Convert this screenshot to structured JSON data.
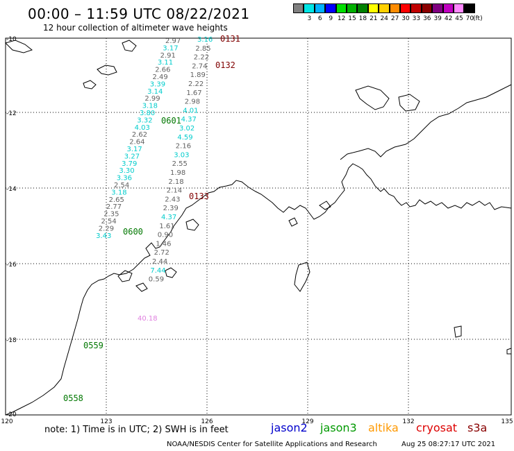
{
  "header": {
    "title": "00:00 – 11:59 UTC 08/22/2021",
    "subtitle": "12 hour collection of altimeter wave heights"
  },
  "legend": {
    "unit": "(ft)",
    "items": [
      {
        "label": "",
        "color": "#808080"
      },
      {
        "label": "3",
        "color": "#00e5e5"
      },
      {
        "label": "6",
        "color": "#00b0ff"
      },
      {
        "label": "9",
        "color": "#0000ff"
      },
      {
        "label": "12",
        "color": "#00e000"
      },
      {
        "label": "15",
        "color": "#00b000"
      },
      {
        "label": "18",
        "color": "#008000"
      },
      {
        "label": "21",
        "color": "#ffff00"
      },
      {
        "label": "24",
        "color": "#ffd000"
      },
      {
        "label": "27",
        "color": "#ff8c00"
      },
      {
        "label": "30",
        "color": "#ff0000"
      },
      {
        "label": "33",
        "color": "#c00000"
      },
      {
        "label": "36",
        "color": "#8b0000"
      },
      {
        "label": "39",
        "color": "#800080"
      },
      {
        "label": "42",
        "color": "#c000c0"
      },
      {
        "label": "45",
        "color": "#ff88ff"
      },
      {
        "label": "70",
        "color": "#000000"
      }
    ]
  },
  "axes": {
    "lat_labels": [
      "-10",
      "-12",
      "-14",
      "-16",
      "-18",
      "-20"
    ],
    "lon_labels": [
      "120",
      "123",
      "126",
      "129",
      "132",
      "135"
    ]
  },
  "tracks": {
    "colors": {
      "gray": "#606060",
      "cyan": "#00cccc",
      "green": "#007700",
      "darkred": "#800000",
      "pink": "#e080e0"
    },
    "times": {
      "t0131": "0131",
      "t0132": "0132",
      "t0601": "0601",
      "t0133": "0133",
      "t0600": "0600",
      "t0559": "0559",
      "t0558": "0558"
    },
    "left_track": [
      "2.97",
      "3.17",
      "2.91",
      "3.11",
      "2.66",
      "2.49",
      "3.39",
      "3.14",
      "2.99",
      "3.18",
      "3.80",
      "3.32",
      "4.03",
      "2.62",
      "2.64",
      "3.17",
      "3.27",
      "3.79",
      "3.30",
      "3.36",
      "2.54",
      "3.18",
      "2.65",
      "2.77",
      "2.35",
      "2.54",
      "2.29",
      "3.43"
    ],
    "right_track": [
      "3.16",
      "2.85",
      "2.22",
      "2.74",
      "1.89",
      "2.22",
      "1.67",
      "2.98",
      "4.01",
      "4.37",
      "3.02",
      "4.59",
      "2.16",
      "3.03",
      "2.55",
      "1.98",
      "2.18",
      "2.14",
      "2.43",
      "2.39",
      "4.37",
      "1.61",
      "0.90",
      "1.46",
      "2.72",
      "2.44",
      "7.44",
      "0.59"
    ],
    "pink_value": "40.18"
  },
  "footer": {
    "note": "note:  1) Time is in UTC;  2) SWH is in feet",
    "satellites": [
      {
        "name": "jason2",
        "color": "#0000cc"
      },
      {
        "name": "jason3",
        "color": "#009900"
      },
      {
        "name": "altika",
        "color": "#ff9900"
      },
      {
        "name": "cryosat",
        "color": "#dd0000"
      },
      {
        "name": "s3a",
        "color": "#880000"
      }
    ],
    "credit": "NOAA/NESDIS Center for Satellite Applications and Research",
    "timestamp": "Aug 25 08:27:17 UTC 2021"
  }
}
